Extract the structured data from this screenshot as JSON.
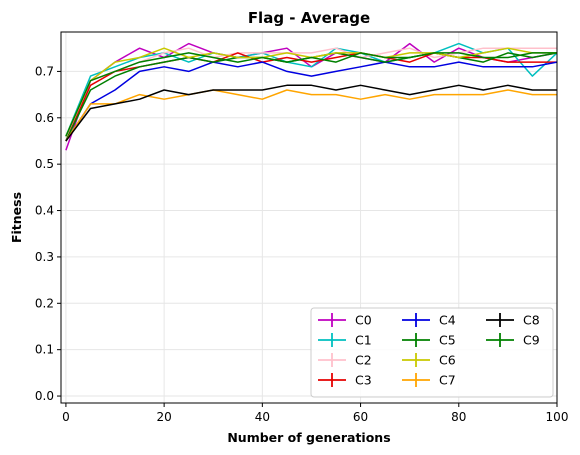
{
  "chart_data": {
    "type": "line",
    "title": "Flag - Average",
    "xlabel": "Number of generations",
    "ylabel": "Fitness",
    "xlim": [
      -1,
      100
    ],
    "ylim": [
      -0.015,
      0.785
    ],
    "xticks": [
      0,
      20,
      40,
      60,
      80,
      100
    ],
    "yticks": [
      0.0,
      0.1,
      0.2,
      0.3,
      0.4,
      0.5,
      0.6,
      0.7
    ],
    "grid": true,
    "legend": {
      "location": "lower right",
      "columns": 3
    },
    "x": [
      0,
      5,
      10,
      15,
      20,
      25,
      30,
      35,
      40,
      45,
      50,
      55,
      60,
      65,
      70,
      75,
      80,
      85,
      90,
      95,
      100
    ],
    "series": [
      {
        "name": "C0",
        "color": "#bf00bf",
        "values": [
          0.53,
          0.68,
          0.72,
          0.75,
          0.73,
          0.76,
          0.74,
          0.73,
          0.74,
          0.75,
          0.71,
          0.74,
          0.73,
          0.72,
          0.76,
          0.72,
          0.75,
          0.73,
          0.72,
          0.73,
          0.74
        ]
      },
      {
        "name": "C1",
        "color": "#00bfbf",
        "values": [
          0.56,
          0.69,
          0.71,
          0.73,
          0.74,
          0.72,
          0.74,
          0.73,
          0.74,
          0.72,
          0.71,
          0.75,
          0.74,
          0.72,
          0.73,
          0.74,
          0.76,
          0.74,
          0.75,
          0.69,
          0.74
        ]
      },
      {
        "name": "C2",
        "color": "#ffc0cb",
        "values": [
          0.55,
          0.68,
          0.7,
          0.72,
          0.74,
          0.75,
          0.73,
          0.74,
          0.74,
          0.74,
          0.74,
          0.75,
          0.73,
          0.74,
          0.75,
          0.73,
          0.74,
          0.75,
          0.75,
          0.75,
          0.75
        ]
      },
      {
        "name": "C3",
        "color": "#e50000",
        "values": [
          0.55,
          0.67,
          0.7,
          0.71,
          0.72,
          0.73,
          0.72,
          0.74,
          0.72,
          0.73,
          0.72,
          0.73,
          0.74,
          0.73,
          0.72,
          0.74,
          0.73,
          0.73,
          0.72,
          0.72,
          0.72
        ]
      },
      {
        "name": "C4",
        "color": "#0000e0",
        "values": [
          0.55,
          0.63,
          0.66,
          0.7,
          0.71,
          0.7,
          0.72,
          0.71,
          0.72,
          0.7,
          0.69,
          0.7,
          0.71,
          0.72,
          0.71,
          0.71,
          0.72,
          0.71,
          0.71,
          0.71,
          0.72
        ]
      },
      {
        "name": "C5",
        "color": "#008000",
        "values": [
          0.55,
          0.66,
          0.69,
          0.71,
          0.72,
          0.73,
          0.72,
          0.73,
          0.73,
          0.72,
          0.73,
          0.74,
          0.73,
          0.72,
          0.73,
          0.74,
          0.73,
          0.72,
          0.74,
          0.73,
          0.74
        ]
      },
      {
        "name": "C6",
        "color": "#c8c800",
        "values": [
          0.56,
          0.68,
          0.72,
          0.73,
          0.75,
          0.73,
          0.74,
          0.73,
          0.73,
          0.74,
          0.73,
          0.74,
          0.74,
          0.73,
          0.74,
          0.74,
          0.73,
          0.74,
          0.75,
          0.74,
          0.74
        ]
      },
      {
        "name": "C7",
        "color": "#ffa500",
        "values": [
          0.55,
          0.63,
          0.63,
          0.65,
          0.64,
          0.65,
          0.66,
          0.65,
          0.64,
          0.66,
          0.65,
          0.65,
          0.64,
          0.65,
          0.64,
          0.65,
          0.65,
          0.65,
          0.66,
          0.65,
          0.65
        ]
      },
      {
        "name": "C8",
        "color": "#000000",
        "values": [
          0.55,
          0.62,
          0.63,
          0.64,
          0.66,
          0.65,
          0.66,
          0.66,
          0.66,
          0.67,
          0.67,
          0.66,
          0.67,
          0.66,
          0.65,
          0.66,
          0.67,
          0.66,
          0.67,
          0.66,
          0.66
        ]
      },
      {
        "name": "C9",
        "color": "#008000",
        "values": [
          0.56,
          0.68,
          0.7,
          0.72,
          0.73,
          0.74,
          0.73,
          0.72,
          0.73,
          0.72,
          0.73,
          0.72,
          0.74,
          0.73,
          0.73,
          0.74,
          0.74,
          0.73,
          0.73,
          0.74,
          0.74
        ]
      }
    ]
  }
}
